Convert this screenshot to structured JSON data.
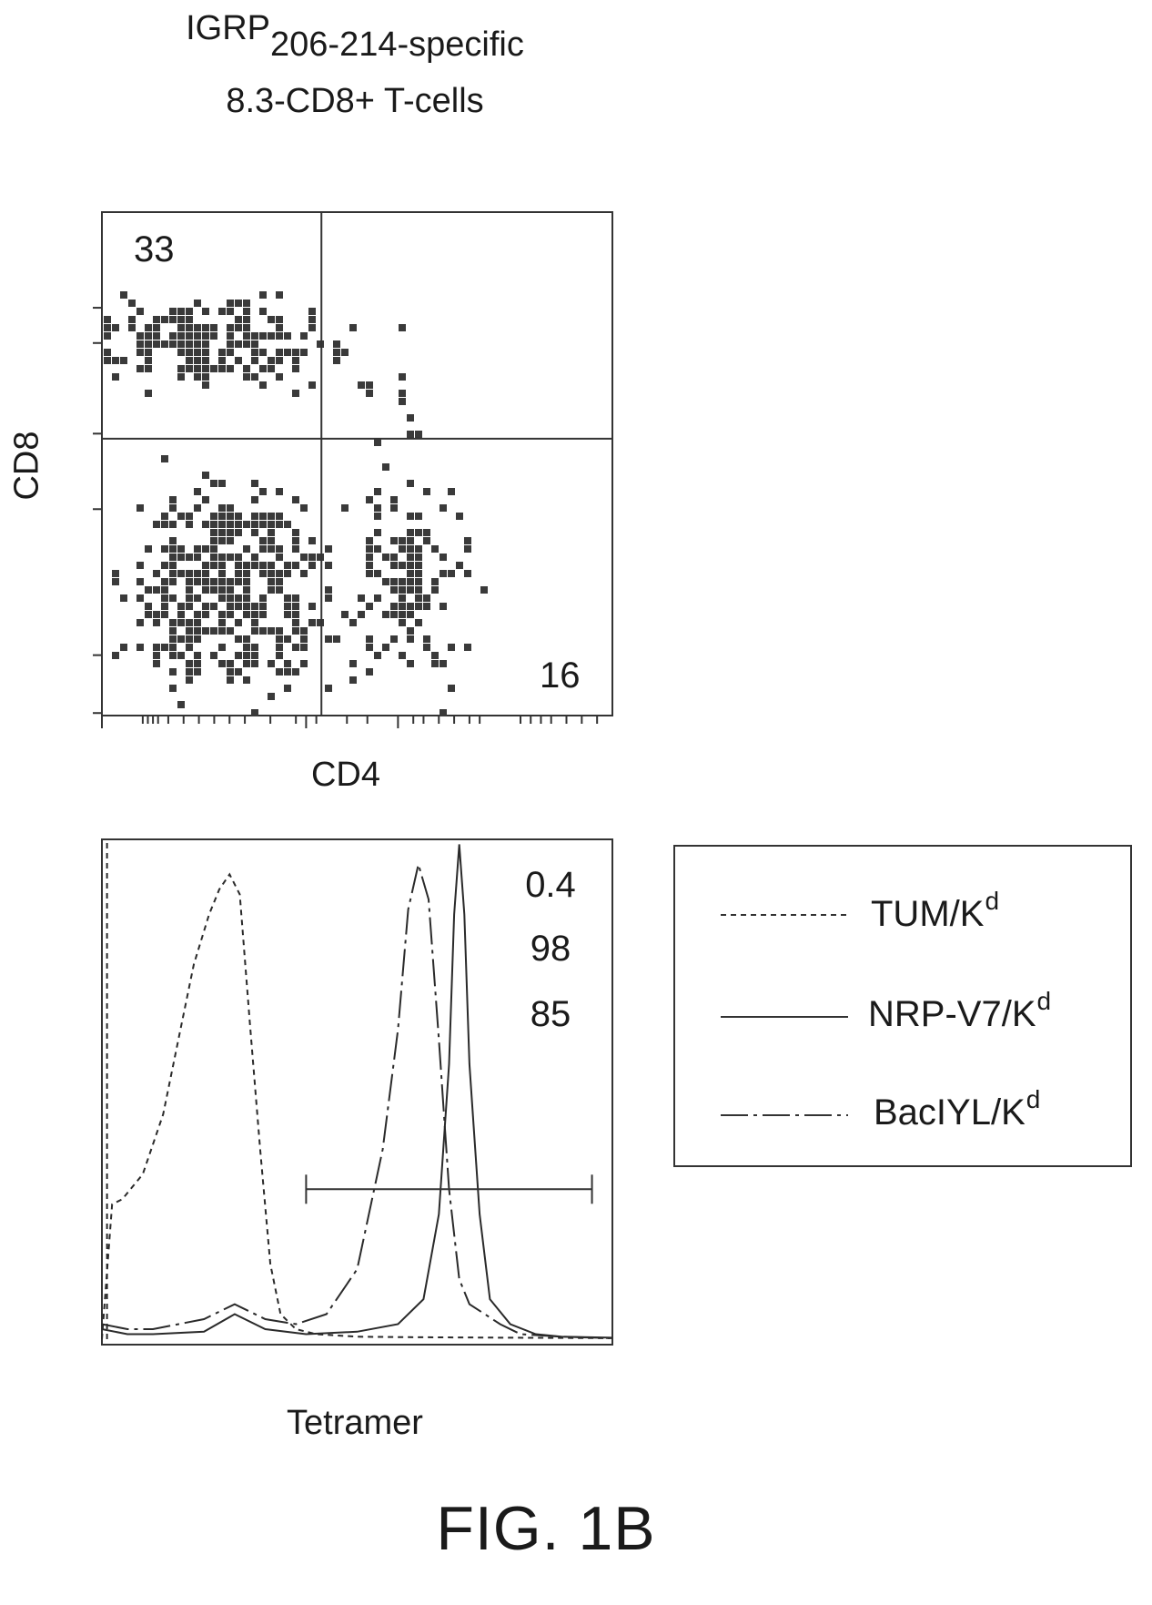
{
  "title": {
    "prefix": "IGRP",
    "subscript": "206-214-specific",
    "line2": "8.3-CD8+ T-cells"
  },
  "figure_label": "FIG. 1B",
  "chart_data": [
    {
      "type": "scatter",
      "xlabel": "CD4",
      "ylabel": "CD8",
      "scale": "log",
      "grid": false,
      "quadrant_labels": {
        "upper_left": "33",
        "lower_right": "16"
      },
      "populations": [
        {
          "name": "",
          "quadrant": "upper-left",
          "center": [
            0.22,
            0.74
          ],
          "spread": [
            0.12,
            0.04
          ],
          "count": 180
        },
        {
          "name": "",
          "quadrant": "lower-left",
          "center": [
            0.25,
            0.25
          ],
          "spread": [
            0.09,
            0.1
          ],
          "count": 420
        },
        {
          "name": "",
          "quadrant": "lower-right",
          "center": [
            0.6,
            0.27
          ],
          "spread": [
            0.06,
            0.1
          ],
          "count": 130
        },
        {
          "name": "",
          "quadrant": "upper-right",
          "center": [
            0.56,
            0.64
          ],
          "spread": [
            0.05,
            0.07
          ],
          "count": 12
        }
      ],
      "gates": {
        "x": 0.43,
        "y": 0.55
      }
    },
    {
      "type": "line",
      "xlabel": "Tetramer",
      "ylabel": "",
      "scale": "log",
      "values_label": [
        "0.4",
        "98",
        "85"
      ],
      "gate": {
        "x_start": 0.4,
        "x_end": 0.96,
        "y": 0.3
      },
      "series": [
        {
          "name": "TUM/K",
          "superscript": "d",
          "style": "dotted",
          "x": [
            0.0,
            0.02,
            0.04,
            0.08,
            0.12,
            0.15,
            0.18,
            0.21,
            0.23,
            0.25,
            0.27,
            0.29,
            0.31,
            0.33,
            0.35,
            0.38,
            0.42,
            0.5,
            0.6,
            0.8,
            1.0
          ],
          "y": [
            0.0,
            0.27,
            0.28,
            0.33,
            0.45,
            0.6,
            0.75,
            0.85,
            0.9,
            0.93,
            0.89,
            0.63,
            0.38,
            0.15,
            0.05,
            0.02,
            0.01,
            0.005,
            0.004,
            0.003,
            0.002
          ]
        },
        {
          "name": "NRP-V7/K",
          "superscript": "d",
          "style": "solid",
          "x": [
            0.0,
            0.05,
            0.1,
            0.2,
            0.26,
            0.32,
            0.4,
            0.5,
            0.58,
            0.63,
            0.66,
            0.68,
            0.69,
            0.7,
            0.71,
            0.72,
            0.74,
            0.76,
            0.8,
            0.85,
            0.9,
            1.0
          ],
          "y": [
            0.02,
            0.01,
            0.01,
            0.015,
            0.05,
            0.02,
            0.01,
            0.015,
            0.03,
            0.08,
            0.25,
            0.55,
            0.85,
            0.99,
            0.85,
            0.55,
            0.25,
            0.08,
            0.03,
            0.01,
            0.005,
            0.003
          ]
        },
        {
          "name": "BacIYL/K",
          "superscript": "d",
          "style": "dash-dot",
          "x": [
            0.0,
            0.05,
            0.1,
            0.2,
            0.26,
            0.32,
            0.38,
            0.44,
            0.5,
            0.55,
            0.58,
            0.6,
            0.62,
            0.64,
            0.66,
            0.68,
            0.7,
            0.72,
            0.75,
            0.78,
            0.82,
            0.9,
            1.0
          ],
          "y": [
            0.03,
            0.02,
            0.02,
            0.04,
            0.07,
            0.04,
            0.03,
            0.05,
            0.14,
            0.38,
            0.62,
            0.86,
            0.95,
            0.88,
            0.6,
            0.3,
            0.12,
            0.07,
            0.05,
            0.03,
            0.01,
            0.005,
            0.002
          ]
        }
      ]
    }
  ]
}
